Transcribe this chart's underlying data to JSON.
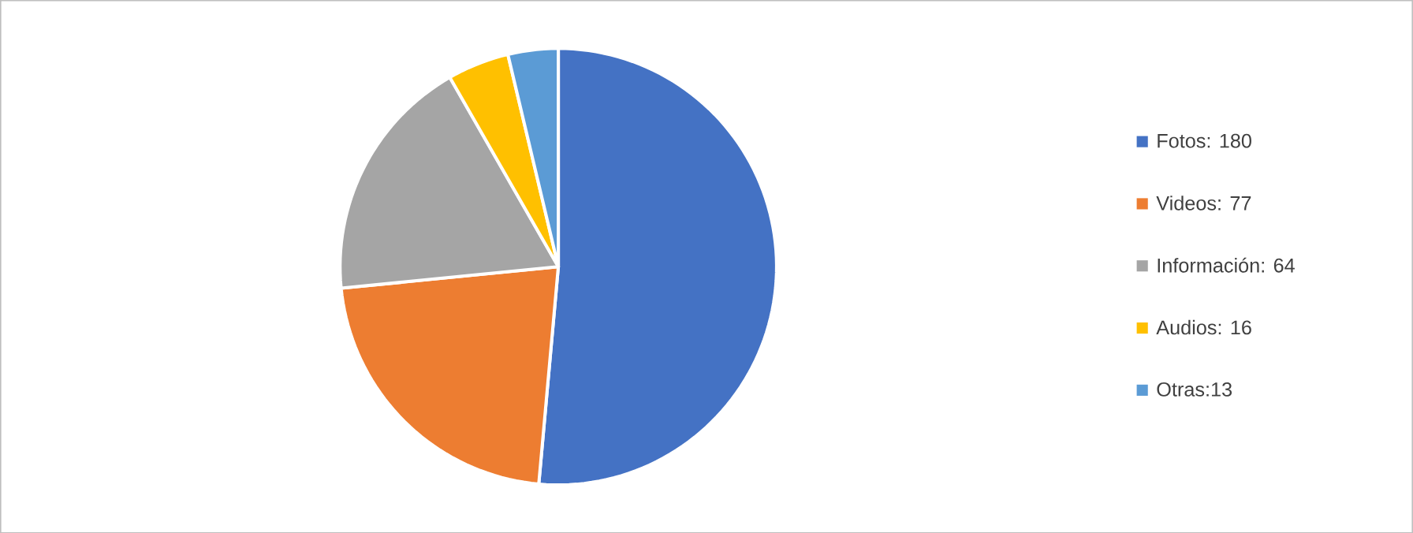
{
  "chart_data": {
    "type": "pie",
    "categories": [
      "Fotos: 180",
      "Videos: 77",
      "Información: 64",
      "Audios: 16",
      "Otras:13"
    ],
    "values": [
      180,
      77,
      64,
      16,
      13
    ],
    "colors": [
      "#4472c4",
      "#ed7d31",
      "#a5a5a5",
      "#ffc000",
      "#5b9bd5"
    ],
    "legend": "right"
  }
}
